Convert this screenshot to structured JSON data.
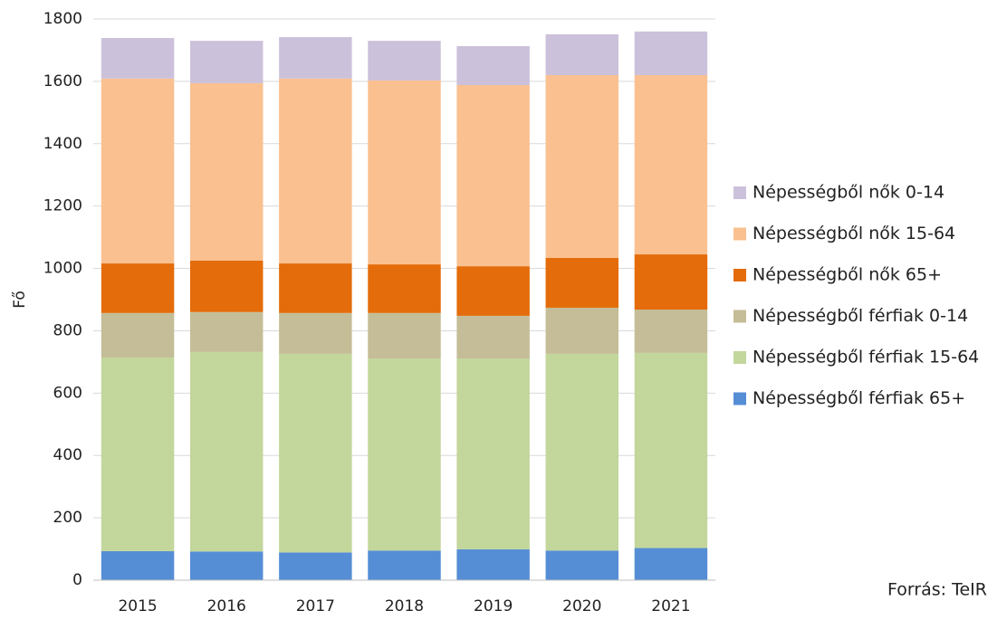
{
  "chart_data": {
    "type": "stacked_bar",
    "ylabel": "Fő",
    "source": "Forrás: TeIR",
    "categories": [
      "2015",
      "2016",
      "2017",
      "2018",
      "2019",
      "2020",
      "2021"
    ],
    "series": [
      {
        "name": "Népességből férfiak 65+",
        "color": "#558ed5",
        "values": [
          93,
          92,
          89,
          95,
          99,
          95,
          103
        ]
      },
      {
        "name": "Népességből férfiak 15-64",
        "color": "#c3d69b",
        "values": [
          621,
          640,
          637,
          616,
          612,
          631,
          626
        ]
      },
      {
        "name": "Népességből férfiak 0-14",
        "color": "#c4bd97",
        "values": [
          143,
          128,
          131,
          146,
          137,
          148,
          139
        ]
      },
      {
        "name": "Népességből nők 65+",
        "color": "#e46c0a",
        "values": [
          159,
          165,
          159,
          156,
          159,
          160,
          177
        ]
      },
      {
        "name": "Népességből nők 15-64",
        "color": "#fac090",
        "values": [
          593,
          569,
          593,
          590,
          581,
          586,
          575
        ]
      },
      {
        "name": "Népességből nők 0-14",
        "color": "#ccc1da",
        "values": [
          130,
          136,
          133,
          127,
          125,
          131,
          140
        ]
      }
    ],
    "ylim": [
      0,
      1800
    ],
    "yticks": [
      0,
      200,
      400,
      600,
      800,
      1000,
      1200,
      1400,
      1600,
      1800
    ],
    "grid": true,
    "legend": "right"
  }
}
